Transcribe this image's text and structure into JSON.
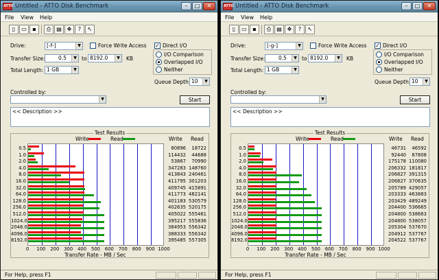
{
  "colors": {
    "write": "#e8000c",
    "read": "#119a14",
    "grid": "#1818c0"
  },
  "icons": {
    "app": "atto-logo-icon",
    "toolbar": [
      "new-file-icon",
      "open-folder-icon",
      "save-icon",
      "print-icon",
      "print-preview-icon",
      "move-icon",
      "help-icon",
      "context-help-icon"
    ]
  },
  "windows": [
    {
      "title": "Untitled - ATTO Disk Benchmark",
      "app_icon_text": "ATTO",
      "menu": [
        "File",
        "View",
        "Help"
      ],
      "drive_label": "Drive:",
      "drive_value": "[-f-]",
      "force_write_label": "Force Write Access",
      "direct_io_label": "Direct I/O",
      "direct_io_check": "✓",
      "transfer_size_label": "Transfer Size:",
      "ts_from": "0.5",
      "to_label": "to",
      "ts_to": "8192.0",
      "kb_label": "KB",
      "total_length_label": "Total Length:",
      "total_length_value": "1 GB",
      "radio_io_comparison": "I/O Comparison",
      "radio_overlapped": "Overlapped I/O",
      "radio_neither": "Neither",
      "queue_depth_label": "Queue Depth:",
      "queue_depth_value": "10",
      "controlled_by_label": "Controlled by:",
      "start_label": "Start",
      "description": "<< Description >>",
      "results_title": "Test Results",
      "legend_write": "Write",
      "legend_read": "Read",
      "col_write": "Write",
      "col_read": "Read",
      "x_axis_label": "Transfer Rate - MB / Sec",
      "status": "For Help, press F1",
      "chart_data": {
        "type": "bar",
        "title": "Test Results",
        "xlabel": "Transfer Rate - MB / Sec",
        "xlim": [
          0,
          1000
        ],
        "x_ticks": [
          "0",
          "100",
          "200",
          "300",
          "400",
          "500",
          "600",
          "700",
          "800",
          "900",
          "1000"
        ],
        "categories": [
          "0.5",
          "1.0",
          "2.0",
          "4.0",
          "8.0",
          "16.0",
          "32.0",
          "64.0",
          "128.0",
          "256.0",
          "512.0",
          "1024.0",
          "2048.0",
          "4096.0",
          "8192.0"
        ],
        "series": [
          {
            "name": "Write",
            "values": [
              "80896",
              "114432",
              "53867",
              "347283",
              "413843",
              "411795",
              "409745",
              "411773",
              "401183",
              "402635",
              "405022",
              "395217",
              "384953",
              "388333",
              "395485"
            ]
          },
          {
            "name": "Read",
            "values": [
              "18722",
              "44688",
              "70990",
              "148760",
              "240461",
              "301203",
              "415891",
              "482141",
              "530579",
              "520175",
              "555461",
              "555836",
              "556342",
              "556342",
              "557305"
            ]
          }
        ]
      }
    },
    {
      "title": "Untitled - ATTO Disk Benchmark",
      "app_icon_text": "ATTO",
      "menu": [
        "File",
        "View",
        "Help"
      ],
      "drive_label": "Drive:",
      "drive_value": "[-g-]",
      "force_write_label": "Force Write Access",
      "direct_io_label": "Direct I/O",
      "direct_io_check": "✓",
      "transfer_size_label": "Transfer Size:",
      "ts_from": "0.5",
      "to_label": "to",
      "ts_to": "8192.0",
      "kb_label": "KB",
      "total_length_label": "Total Length:",
      "total_length_value": "1 GB",
      "radio_io_comparison": "I/O Comparison",
      "radio_overlapped": "Overlapped I/O",
      "radio_neither": "Neither",
      "queue_depth_label": "Queue Depth:",
      "queue_depth_value": "10",
      "controlled_by_label": "Controlled by:",
      "start_label": "Start",
      "description": "<< Description >>",
      "results_title": "Test Results",
      "legend_write": "Write",
      "legend_read": "Read",
      "col_write": "Write",
      "col_read": "Read",
      "x_axis_label": "Transfer Rate - MB / Sec",
      "status": "For Help, press F1",
      "chart_data": {
        "type": "bar",
        "title": "Test Results",
        "xlabel": "Transfer Rate - MB / Sec",
        "xlim": [
          0,
          1000
        ],
        "x_ticks": [
          "0",
          "100",
          "200",
          "300",
          "400",
          "500",
          "600",
          "700",
          "800",
          "900",
          "1000"
        ],
        "categories": [
          "0.5",
          "1.0",
          "2.0",
          "4.0",
          "8.0",
          "16.0",
          "32.0",
          "64.0",
          "128.0",
          "256.0",
          "512.0",
          "1024.0",
          "2048.0",
          "4096.0",
          "8192.0"
        ],
        "series": [
          {
            "name": "Write",
            "values": [
              "46731",
              "92440",
              "175178",
              "206332",
              "206827",
              "206827",
              "205789",
              "203333",
              "203429",
              "204400",
              "204800",
              "204800",
              "205304",
              "204912",
              "204522"
            ]
          },
          {
            "name": "Read",
            "values": [
              "46592",
              "87808",
              "110080",
              "181817",
              "391315",
              "370635",
              "429057",
              "463883",
              "489249",
              "536665",
              "538663",
              "538057",
              "537670",
              "537767",
              "537767"
            ]
          }
        ]
      }
    }
  ]
}
